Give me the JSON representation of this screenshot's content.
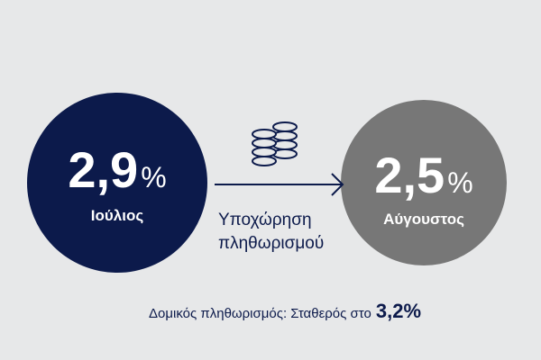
{
  "left": {
    "value": "2,9",
    "unit": "%",
    "label": "Ιούλιος"
  },
  "right": {
    "value": "2,5",
    "unit": "%",
    "label": "Αύγουστος"
  },
  "arrow_caption": {
    "line1": "Υποχώρηση",
    "line2": "πληθωρισμού"
  },
  "footer": {
    "text": "Δομικός πληθωρισμός: Σταθερός στο",
    "highlight": "3,2%"
  }
}
